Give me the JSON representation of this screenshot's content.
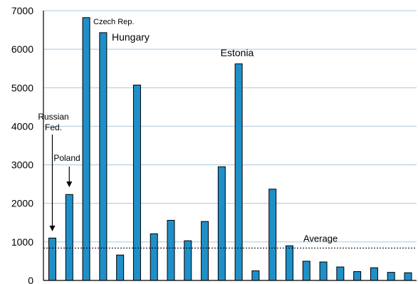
{
  "chart_data": {
    "type": "bar",
    "title": "",
    "xlabel": "",
    "ylabel": "",
    "ylim": [
      0,
      7000
    ],
    "yticks": [
      "0",
      "1000",
      "2000",
      "3000",
      "4000",
      "5000",
      "6000",
      "7000"
    ],
    "grid": "horizontal",
    "bar_color": "#1f8fc8",
    "grid_color": "#a9c7dc",
    "values": [
      1100,
      2230,
      6820,
      6430,
      660,
      5070,
      1210,
      1560,
      1030,
      1530,
      2950,
      5620,
      250,
      2370,
      900,
      500,
      480,
      350,
      230,
      330,
      210,
      200
    ],
    "average": {
      "label": "Average",
      "value": 840
    },
    "annotations": [
      {
        "bar_index": 0,
        "lines": [
          "Russian",
          "Fed."
        ],
        "arrow": true
      },
      {
        "bar_index": 1,
        "lines": [
          "Poland"
        ],
        "arrow": true
      },
      {
        "bar_index": 2,
        "lines": [
          "Czech Rep."
        ],
        "arrow": false
      },
      {
        "bar_index": 3,
        "lines": [
          "Hungary"
        ],
        "arrow": false
      },
      {
        "bar_index": 11,
        "lines": [
          "Estonia"
        ],
        "arrow": false
      }
    ]
  }
}
